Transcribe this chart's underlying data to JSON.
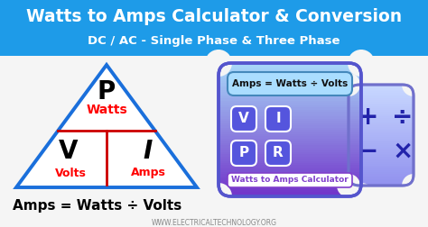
{
  "title": "Watts to Amps Calculator & Conversion",
  "subtitle": "DC / AC - Single Phase & Three Phase",
  "header_bg": "#1e9be8",
  "header_text_color": "#ffffff",
  "body_bg": "#f5f5f5",
  "formula_text": "Amps = Watts ÷ Volts",
  "website": "WWW.ELECTRICALTECHNOLOGY.ORG",
  "triangle_stroke": "#1a6fdb",
  "triangle_fill": "#ffffff",
  "divider_color": "#cc0000",
  "P_label": "P",
  "watts_label": "Watts",
  "V_label": "V",
  "I_label": "I",
  "volts_label": "Volts",
  "amps_label": "Amps",
  "calc_display_bg": "#aaddff",
  "calc_display_text": "Amps = Watts ÷ Volts",
  "calc_button_bg": "#5555dd",
  "calc_buttons": [
    "V",
    "I",
    "P",
    "R"
  ],
  "calc_ops": [
    "+",
    "÷",
    "−",
    "×"
  ],
  "calc_label": "Watts to Amps Calculator",
  "calc_grad_top": "#a8d8f8",
  "calc_grad_bot": "#7030c8",
  "ops_bg": "#f8f8ff",
  "ops_stroke": "#8888cc"
}
